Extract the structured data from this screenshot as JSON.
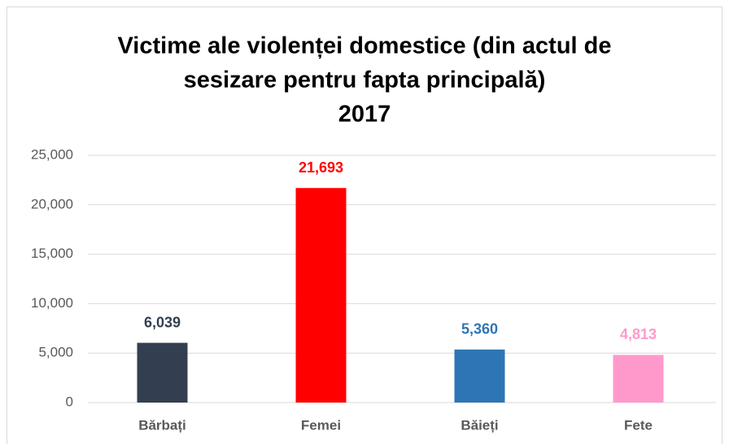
{
  "chart_data": {
    "type": "bar",
    "title": [
      "Victime ale violenței domestice (din actul de",
      "sesizare pentru fapta principală)",
      "2017"
    ],
    "categories": [
      "Bărbați",
      "Femei",
      "Băieți",
      "Fete"
    ],
    "values": [
      6039,
      21693,
      5360,
      4813
    ],
    "value_labels": [
      "6,039",
      "21,693",
      "5,360",
      "4,813"
    ],
    "colors": [
      "#333f50",
      "#ff0000",
      "#2e75b6",
      "#ff99cc"
    ],
    "ylim": [
      0,
      25000
    ],
    "yticks": [
      0,
      {
        "value": 5000,
        "label": "5,000"
      },
      {
        "value": 10000,
        "label": "10,000"
      },
      {
        "value": 15000,
        "label": "15,000"
      },
      {
        "value": 20000,
        "label": "20,000"
      },
      {
        "value": 25000,
        "label": "25,000"
      }
    ],
    "grid": true
  }
}
